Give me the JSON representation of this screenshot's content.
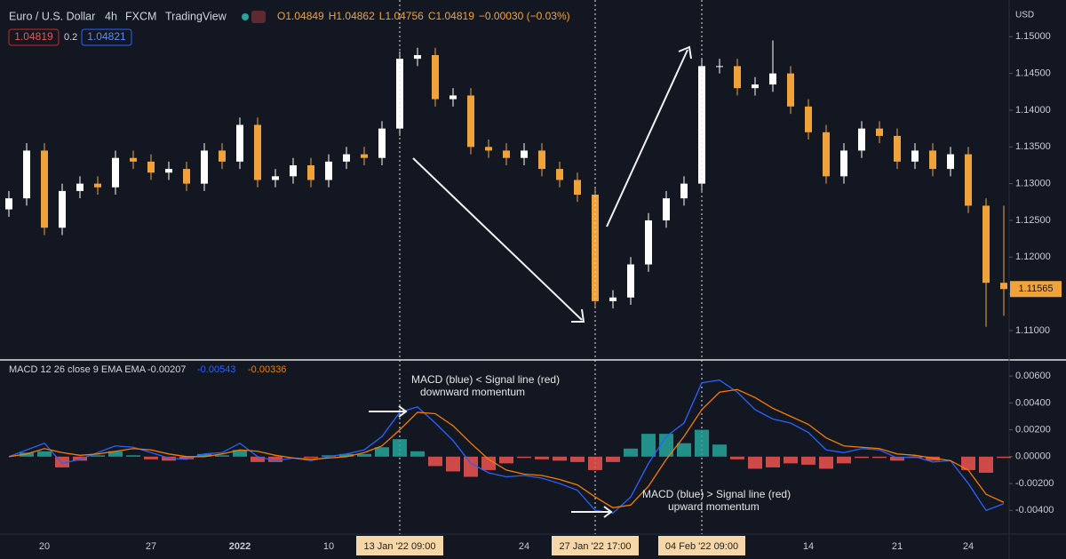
{
  "header": {
    "symbol": "Euro / U.S. Dollar",
    "interval": "4h",
    "source": "FXCM",
    "platform": "TradingView",
    "ohlc": [
      "O1.04849",
      "H1.04862",
      "L1.04756",
      "C1.04819",
      "−0.00030 (−0.03%)"
    ],
    "bid": "1.04819",
    "spread": "0.2",
    "ask": "1.04821",
    "currency": "USD"
  },
  "chart_data": [
    {
      "type": "candlestick",
      "up_color": "#ffffff",
      "down_color": "#f0a33a",
      "categories": [
        null,
        null,
        "20",
        null,
        null,
        null,
        null,
        null,
        "27",
        null,
        null,
        null,
        null,
        "2022",
        null,
        null,
        null,
        null,
        "10",
        null,
        null,
        null,
        "13 Jan '22  09:00",
        null,
        null,
        null,
        null,
        null,
        null,
        "24",
        null,
        null,
        null,
        "27 Jan '22  17:00",
        null,
        null,
        null,
        null,
        null,
        "04 Feb '22  09:00",
        null,
        null,
        null,
        null,
        null,
        "14",
        null,
        null,
        null,
        null,
        "21",
        null,
        null,
        null,
        "24",
        null,
        null
      ],
      "open": [
        1.1265,
        1.128,
        1.1345,
        1.124,
        1.129,
        1.13,
        1.1295,
        1.1335,
        1.133,
        1.1315,
        1.132,
        1.13,
        1.1345,
        1.133,
        1.138,
        1.1305,
        1.131,
        1.1325,
        1.1305,
        1.133,
        1.134,
        1.1335,
        1.1375,
        1.147,
        1.1475,
        1.1415,
        1.142,
        1.135,
        1.1345,
        1.1335,
        1.1345,
        1.132,
        1.1305,
        1.1285,
        1.114,
        1.1145,
        1.119,
        1.125,
        1.128,
        1.13,
        1.146,
        1.146,
        1.143,
        1.1435,
        1.145,
        1.1405,
        1.137,
        1.131,
        1.1345,
        1.1375,
        1.1365,
        1.133,
        1.1345,
        1.132,
        1.134,
        1.127,
        1.1165
      ],
      "high": [
        1.129,
        1.1355,
        1.1355,
        1.13,
        1.131,
        1.131,
        1.1345,
        1.1345,
        1.134,
        1.133,
        1.133,
        1.1355,
        1.1355,
        1.139,
        1.139,
        1.132,
        1.1335,
        1.1335,
        1.134,
        1.135,
        1.135,
        1.1385,
        1.148,
        1.1485,
        1.1485,
        1.143,
        1.143,
        1.136,
        1.1355,
        1.1355,
        1.1355,
        1.133,
        1.1315,
        1.1295,
        1.1155,
        1.12,
        1.126,
        1.129,
        1.131,
        1.147,
        1.147,
        1.147,
        1.1445,
        1.1495,
        1.146,
        1.1415,
        1.138,
        1.1355,
        1.1385,
        1.1385,
        1.1375,
        1.1355,
        1.1355,
        1.135,
        1.135,
        1.128,
        1.127
      ],
      "low": [
        1.1255,
        1.127,
        1.123,
        1.123,
        1.128,
        1.1285,
        1.1285,
        1.132,
        1.1305,
        1.1305,
        1.129,
        1.129,
        1.132,
        1.132,
        1.1295,
        1.1295,
        1.13,
        1.1295,
        1.1295,
        1.132,
        1.1325,
        1.1325,
        1.1365,
        1.146,
        1.1405,
        1.1405,
        1.134,
        1.1335,
        1.1325,
        1.1325,
        1.131,
        1.1295,
        1.1275,
        1.113,
        1.113,
        1.1135,
        1.118,
        1.124,
        1.127,
        1.129,
        1.145,
        1.142,
        1.142,
        1.1425,
        1.1395,
        1.136,
        1.13,
        1.13,
        1.1335,
        1.1355,
        1.132,
        1.132,
        1.131,
        1.131,
        1.126,
        1.1105,
        1.112
      ],
      "close": [
        1.128,
        1.1345,
        1.124,
        1.129,
        1.13,
        1.1295,
        1.1335,
        1.133,
        1.1315,
        1.132,
        1.13,
        1.1345,
        1.133,
        1.138,
        1.1305,
        1.131,
        1.1325,
        1.1305,
        1.133,
        1.134,
        1.1335,
        1.1375,
        1.147,
        1.1475,
        1.1415,
        1.142,
        1.135,
        1.1345,
        1.1335,
        1.1345,
        1.132,
        1.1305,
        1.1285,
        1.114,
        1.1145,
        1.119,
        1.125,
        1.128,
        1.13,
        1.146,
        1.146,
        1.143,
        1.1435,
        1.145,
        1.1405,
        1.137,
        1.131,
        1.1345,
        1.1375,
        1.1365,
        1.133,
        1.1345,
        1.132,
        1.134,
        1.127,
        1.1165,
        1.11565
      ],
      "ylim": [
        1.106,
        1.155
      ],
      "yticks": [
        {
          "value": 1.15,
          "label": "1.15000"
        },
        {
          "value": 1.145,
          "label": "1.14500"
        },
        {
          "value": 1.14,
          "label": "1.14000"
        },
        {
          "value": 1.135,
          "label": "1.13500"
        },
        {
          "value": 1.13,
          "label": "1.13000"
        },
        {
          "value": 1.125,
          "label": "1.12500"
        },
        {
          "value": 1.12,
          "label": "1.12000"
        },
        {
          "value": 1.115,
          "label": "1.11500"
        },
        {
          "value": 1.11,
          "label": "1.11000"
        }
      ],
      "last_price": 1.11565
    },
    {
      "type": "macd",
      "title": "MACD 12 26 close 9 EMA EMA",
      "legend_values": [
        "-0.00207",
        "-0.00543",
        "-0.00336"
      ],
      "annotations": [
        "MACD  (blue) < Signal line (red)",
        "downward momentum",
        "MACD (blue) > Signal line (red)",
        "upward momentum"
      ],
      "histogram": {
        "pos_color": "#26a69a",
        "neg_color": "#ef5350",
        "values": [
          0,
          0.0003,
          0.0004,
          -0.0008,
          -0.0003,
          0.0001,
          0.0004,
          0.0001,
          -0.0002,
          -0.0003,
          -0.0002,
          0.0002,
          0.0001,
          0.0005,
          -0.0004,
          -0.0004,
          0,
          -0.0001,
          0.0001,
          0.0002,
          0.0002,
          0.0007,
          0.0013,
          0.0004,
          -0.0007,
          -0.0011,
          -0.0015,
          -0.001,
          -0.0005,
          -0.0001,
          -0.0002,
          -0.0003,
          -0.0004,
          -0.001,
          -0.0004,
          0.0006,
          0.0017,
          0.0017,
          0.001,
          0.002,
          0.0009,
          -0.0002,
          -0.0009,
          -0.0008,
          -0.0005,
          -0.0006,
          -0.0009,
          -0.0005,
          -0.0001,
          -0.0001,
          -0.0003,
          -0.0001,
          -0.0003,
          0,
          -0.001,
          -0.0012,
          -0.0001
        ]
      },
      "series": [
        {
          "color": "#2962ff",
          "values": [
            0,
            0.0005,
            0.001,
            -0.0005,
            -0.0002,
            0.0003,
            0.0008,
            0.0007,
            0.0003,
            -0.0001,
            -0.0002,
            0.0002,
            0.0003,
            0.001,
            0,
            -0.0003,
            -0.0001,
            -0.0003,
            0,
            0.0002,
            0.0005,
            0.0015,
            0.0033,
            0.0037,
            0.0025,
            0.0012,
            -0.0005,
            -0.0012,
            -0.0015,
            -0.0014,
            -0.0016,
            -0.002,
            -0.0025,
            -0.004,
            -0.0042,
            -0.003,
            -0.0005,
            0.0015,
            0.0025,
            0.0055,
            0.0057,
            0.0048,
            0.0035,
            0.0028,
            0.0025,
            0.0018,
            0.0005,
            0.0003,
            0.0006,
            0.0005,
            -0.0001,
            0,
            -0.0004,
            -0.0003,
            -0.002,
            -0.004,
            -0.0035
          ]
        },
        {
          "color": "#f57c00",
          "values": [
            0,
            0.0002,
            0.0006,
            0.0003,
            0.0001,
            0.0002,
            0.0004,
            0.0006,
            0.0005,
            0.0002,
            0,
            0,
            0.0002,
            0.0005,
            0.0004,
            0.0001,
            -0.0001,
            -0.0002,
            -0.0001,
            0,
            0.0003,
            0.0008,
            0.002,
            0.0033,
            0.0032,
            0.0023,
            0.001,
            -0.0002,
            -0.001,
            -0.0013,
            -0.0014,
            -0.0017,
            -0.0021,
            -0.003,
            -0.0038,
            -0.0036,
            -0.0022,
            -0.0002,
            0.0015,
            0.0035,
            0.0048,
            0.005,
            0.0044,
            0.0036,
            0.003,
            0.0024,
            0.0014,
            0.0008,
            0.0007,
            0.0006,
            0.0002,
            0.0001,
            -0.0001,
            -0.0003,
            -0.001,
            -0.0028,
            -0.0034
          ]
        }
      ],
      "ylim": [
        -0.0057,
        0.007
      ],
      "yticks": [
        {
          "value": 0.006,
          "label": "0.00600"
        },
        {
          "value": 0.004,
          "label": "0.00400"
        },
        {
          "value": 0.002,
          "label": "0.00200"
        },
        {
          "value": 0,
          "label": "0.00000"
        },
        {
          "value": -0.002,
          "label": "-0.00200"
        },
        {
          "value": -0.004,
          "label": "-0.00400"
        }
      ]
    }
  ]
}
